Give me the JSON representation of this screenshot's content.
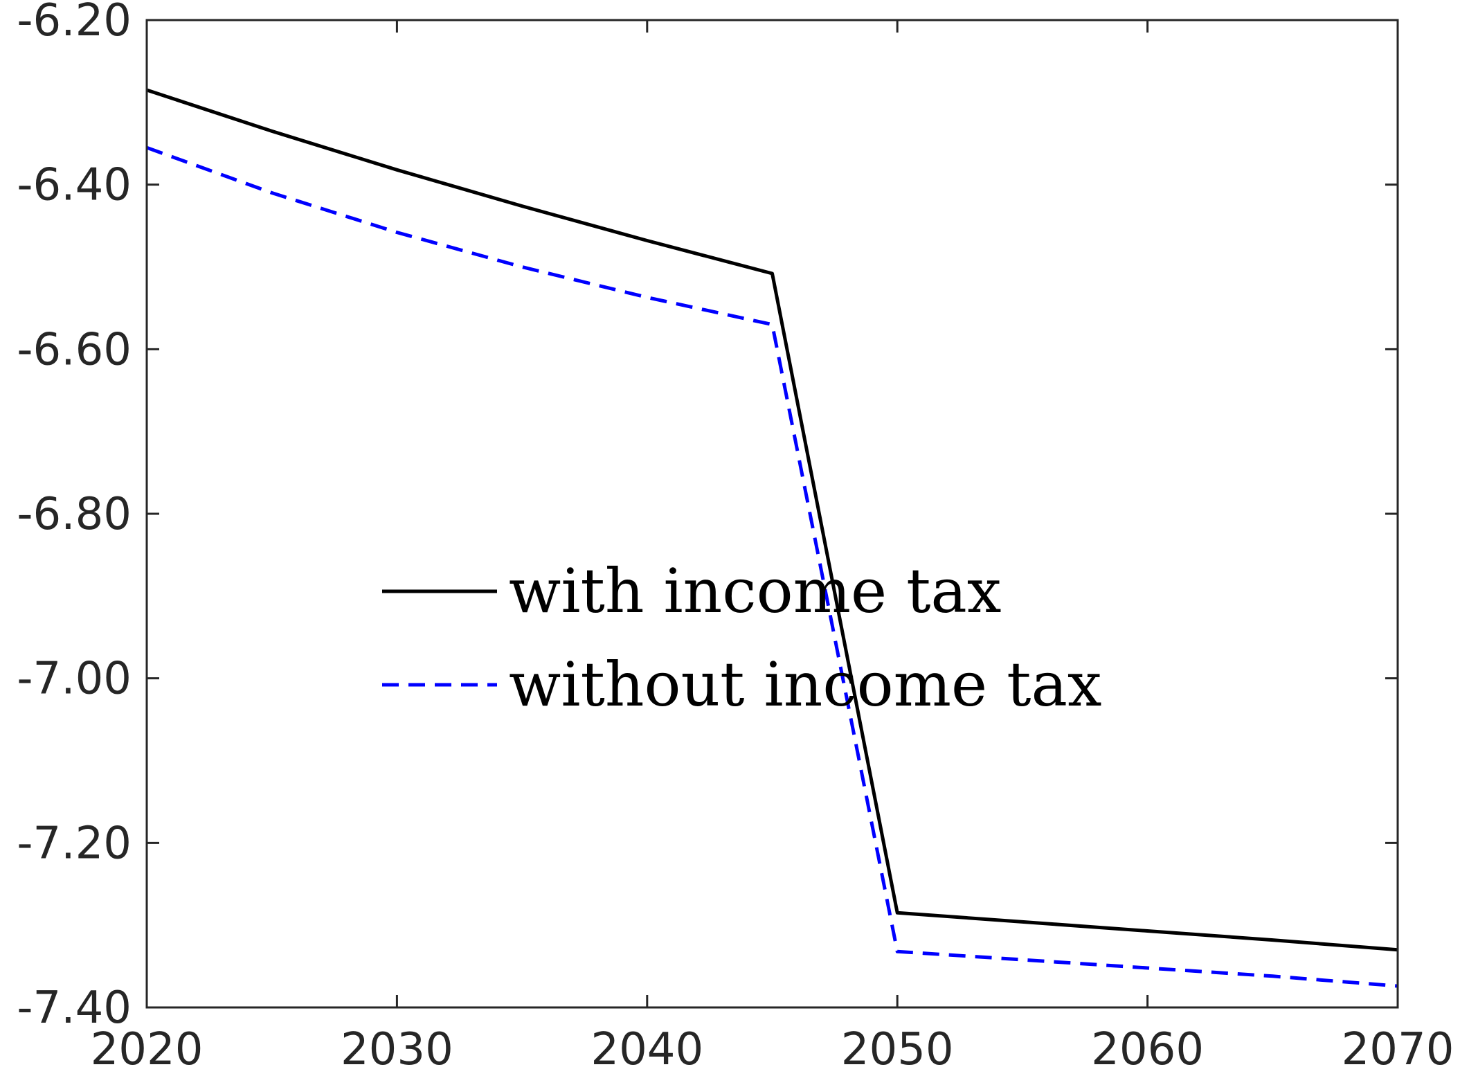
{
  "chart_data": {
    "type": "line",
    "title": "",
    "xlabel": "",
    "ylabel": "",
    "xlim": [
      2020,
      2070
    ],
    "ylim": [
      -7.4,
      -6.2
    ],
    "xticks": [
      2020,
      2030,
      2040,
      2050,
      2060,
      2070
    ],
    "yticks": [
      -6.2,
      -6.4,
      -6.6,
      -6.8,
      -7.0,
      -7.2,
      -7.4
    ],
    "xtick_labels": [
      "2020",
      "2030",
      "2040",
      "2050",
      "2060",
      "2070"
    ],
    "ytick_labels": [
      "-6.20",
      "-6.40",
      "-6.60",
      "-6.80",
      "-7.00",
      "-7.20",
      "-7.40"
    ],
    "grid": false,
    "legend_position": "center",
    "x": [
      2020,
      2025,
      2030,
      2035,
      2040,
      2045,
      2050,
      2055,
      2060,
      2065,
      2070
    ],
    "series": [
      {
        "name": "with income tax",
        "color": "#000000",
        "style": "solid",
        "values": [
          -6.285,
          -6.335,
          -6.382,
          -6.426,
          -6.468,
          -6.508,
          -7.285,
          -7.296,
          -7.307,
          -7.318,
          -7.33
        ]
      },
      {
        "name": "without income tax",
        "color": "#0000ff",
        "style": "dashed",
        "values": [
          -6.355,
          -6.41,
          -6.458,
          -6.5,
          -6.537,
          -6.57,
          -7.332,
          -7.342,
          -7.352,
          -7.362,
          -7.374
        ]
      }
    ]
  }
}
